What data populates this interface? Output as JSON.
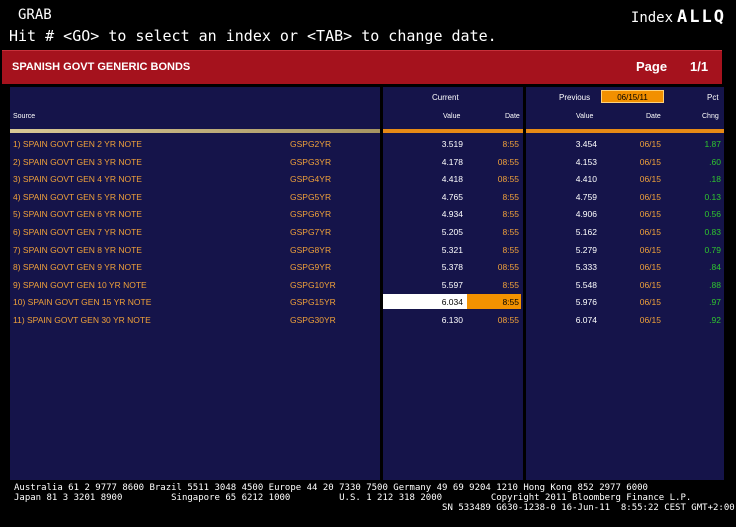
{
  "top": {
    "grab": "GRAB",
    "index_label": "Index",
    "index_code": "ALLQ",
    "hint": "Hit # <GO> to select an index or <TAB> to change date."
  },
  "title_bar": {
    "title": "SPANISH GOVT GENERIC BONDS",
    "page_label": "Page",
    "page_num": "1/1"
  },
  "headers": {
    "source": "Source",
    "current": "Current",
    "previous": "Previous",
    "previous_date": "06/15/11",
    "pct": "Pct",
    "value": "Value",
    "date": "Date",
    "chng": "Chng"
  },
  "rows": [
    {
      "name": "1)  SPAIN GOVT GEN 2 YR NOTE",
      "ticker": "GSPG2YR",
      "cur_value": "3.519",
      "cur_date": "8:55",
      "prev_value": "3.454",
      "prev_date": "06/15",
      "pct_chng": "1.87"
    },
    {
      "name": "2)  SPAIN GOVT GEN 3 YR NOTE",
      "ticker": "GSPG3YR",
      "cur_value": "4.178",
      "cur_date": "08:55",
      "prev_value": "4.153",
      "prev_date": "06/15",
      "pct_chng": ".60"
    },
    {
      "name": "3)  SPAIN GOVT GEN 4 YR NOTE",
      "ticker": "GSPG4YR",
      "cur_value": "4.418",
      "cur_date": "08:55",
      "prev_value": "4.410",
      "prev_date": "06/15",
      "pct_chng": ".18"
    },
    {
      "name": "4)  SPAIN GOVT GEN 5 YR NOTE",
      "ticker": "GSPG5YR",
      "cur_value": "4.765",
      "cur_date": "8:55",
      "prev_value": "4.759",
      "prev_date": "06/15",
      "pct_chng": "0.13"
    },
    {
      "name": "5)  SPAIN GOVT GEN 6 YR NOTE",
      "ticker": "GSPG6YR",
      "cur_value": "4.934",
      "cur_date": "8:55",
      "prev_value": "4.906",
      "prev_date": "06/15",
      "pct_chng": "0.56"
    },
    {
      "name": "6)  SPAIN GOVT GEN 7 YR NOTE",
      "ticker": "GSPG7YR",
      "cur_value": "5.205",
      "cur_date": "8:55",
      "prev_value": "5.162",
      "prev_date": "06/15",
      "pct_chng": "0.83"
    },
    {
      "name": "7)  SPAIN GOVT GEN 8 YR NOTE",
      "ticker": "GSPG8YR",
      "cur_value": "5.321",
      "cur_date": "8:55",
      "prev_value": "5.279",
      "prev_date": "06/15",
      "pct_chng": "0.79"
    },
    {
      "name": "8)  SPAIN GOVT GEN 9 YR NOTE",
      "ticker": "GSPG9YR",
      "cur_value": "5.378",
      "cur_date": "08:55",
      "prev_value": "5.333",
      "prev_date": "06/15",
      "pct_chng": ".84"
    },
    {
      "name": "9)  SPAIN GOVT GEN 10 YR NOTE",
      "ticker": "GSPG10YR",
      "cur_value": "5.597",
      "cur_date": "8:55",
      "prev_value": "5.548",
      "prev_date": "06/15",
      "pct_chng": ".88"
    },
    {
      "name": "10)  SPAIN GOVT GEN 15 YR NOTE",
      "ticker": "GSPG15YR",
      "cur_value": "6.034",
      "cur_date": "8:55",
      "prev_value": "5.976",
      "prev_date": "06/15",
      "pct_chng": ".97",
      "selected": true
    },
    {
      "name": "11)  SPAIN GOVT GEN 30 YR NOTE",
      "ticker": "GSPG30YR",
      "cur_value": "6.130",
      "cur_date": "08:55",
      "prev_value": "6.074",
      "prev_date": "06/15",
      "pct_chng": ".92"
    }
  ],
  "footer": {
    "line1": "Australia 61 2 9777 8600 Brazil 5511 3048 4500 Europe 44 20 7330 7500 Germany 49 69 9204 1210 Hong Kong 852 2977 6000",
    "line2": "Japan 81 3 3201 8900         Singapore 65 6212 1000         U.S. 1 212 318 2000         Copyright 2011 Bloomberg Finance L.P.",
    "line3": "                                                                               SN 533489 G630-1238-0 16-Jun-11  8:55:22 CEST GMT+2:00"
  },
  "colors": {
    "title_bar": "#a5121d",
    "panel": "#15144a",
    "accent_orange": "#f0a13a",
    "pct_green": "#2fc52f"
  }
}
